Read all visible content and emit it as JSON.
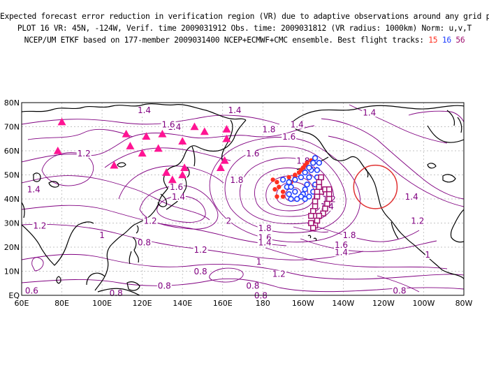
{
  "header": {
    "line1": "Expected forecast error reduction in verification region (VR) due to adaptive observations around any grid point.",
    "line2": "PLOT 16 VR: 45N, -124W, Verif. time 2009031912 Obs. time: 2009031812 (VR radius: 1000km) Norm: u,v,T",
    "line3_prefix": "NCEP/UM ETKF based on 177-member 2009031400 NCEP+ECMWF+CMC ensemble. Best flight tracks:",
    "track_a": "15",
    "track_b": "16",
    "track_c": "56"
  },
  "map": {
    "lat_labels": [
      "80N",
      "70N",
      "60N",
      "50N",
      "40N",
      "30N",
      "20N",
      "10N",
      "EQ"
    ],
    "lon_labels": [
      "60E",
      "80E",
      "100E",
      "120E",
      "140E",
      "160E",
      "180",
      "160W",
      "140W",
      "120W",
      "100W",
      "80W"
    ],
    "contour_labels": [
      {
        "text": "1.4",
        "lon": 121,
        "lat": 76
      },
      {
        "text": "1.4",
        "lon": 166,
        "lat": 76
      },
      {
        "text": "1.4",
        "lon": 136,
        "lat": 69
      },
      {
        "text": "1.4",
        "lon": 66,
        "lat": 43
      },
      {
        "text": "1.2",
        "lon": 91,
        "lat": 58
      },
      {
        "text": "1.6",
        "lon": 133,
        "lat": 70
      },
      {
        "text": "1.6",
        "lon": 175,
        "lat": 58
      },
      {
        "text": "1.8",
        "lon": 183,
        "lat": 68
      },
      {
        "text": "1.6",
        "lon": 193,
        "lat": 65
      },
      {
        "text": "1.4",
        "lon": 197,
        "lat": 70
      },
      {
        "text": "1.4",
        "lon": 233,
        "lat": 75
      },
      {
        "text": "1.4",
        "lon": 254,
        "lat": 40
      },
      {
        "text": "1.2",
        "lon": 257,
        "lat": 30
      },
      {
        "text": "1.6",
        "lon": 137,
        "lat": 44
      },
      {
        "text": "1.4",
        "lon": 138,
        "lat": 40
      },
      {
        "text": "1.8",
        "lon": 167,
        "lat": 47
      },
      {
        "text": "2",
        "lon": 163,
        "lat": 30
      },
      {
        "text": "1.2",
        "lon": 124,
        "lat": 30
      },
      {
        "text": "1.2",
        "lon": 69,
        "lat": 28
      },
      {
        "text": "1",
        "lon": 100,
        "lat": 24
      },
      {
        "text": "0.8",
        "lon": 121,
        "lat": 21
      },
      {
        "text": "1.8",
        "lon": 181,
        "lat": 27
      },
      {
        "text": "1.6",
        "lon": 181,
        "lat": 23
      },
      {
        "text": "1.4",
        "lon": 181,
        "lat": 21
      },
      {
        "text": "1.8",
        "lon": 223,
        "lat": 24
      },
      {
        "text": "1.6",
        "lon": 219,
        "lat": 20
      },
      {
        "text": "1.4",
        "lon": 219,
        "lat": 17
      },
      {
        "text": "1.2",
        "lon": 149,
        "lat": 18
      },
      {
        "text": "1",
        "lon": 178,
        "lat": 13
      },
      {
        "text": "1.2",
        "lon": 188,
        "lat": 8
      },
      {
        "text": "1",
        "lon": 262,
        "lat": 16
      },
      {
        "text": "0.8",
        "lon": 149,
        "lat": 9
      },
      {
        "text": "0.8",
        "lon": 131,
        "lat": 3
      },
      {
        "text": "0.8",
        "lon": 179,
        "lat": -1
      },
      {
        "text": "0.6",
        "lon": 65,
        "lat": 1
      },
      {
        "text": "0.8",
        "lon": 107,
        "lat": 0
      },
      {
        "text": "0.8",
        "lon": 175,
        "lat": 3
      },
      {
        "text": "0.8",
        "lon": 248,
        "lat": 1
      },
      {
        "text": "1",
        "lon": 211,
        "lat": 37
      },
      {
        "text": "1.2",
        "lon": 213,
        "lat": 39
      },
      {
        "text": "1.4",
        "lon": 212,
        "lat": 36
      },
      {
        "text": "1.6",
        "lon": 203,
        "lat": 52
      },
      {
        "text": "1.8",
        "lon": 200,
        "lat": 55
      }
    ],
    "triangles": [
      {
        "lon": 80,
        "lat": 72
      },
      {
        "lon": 78,
        "lat": 60
      },
      {
        "lon": 112,
        "lat": 67
      },
      {
        "lon": 114,
        "lat": 62
      },
      {
        "lon": 120,
        "lat": 59
      },
      {
        "lon": 122,
        "lat": 66
      },
      {
        "lon": 130,
        "lat": 67
      },
      {
        "lon": 128,
        "lat": 61
      },
      {
        "lon": 140,
        "lat": 64
      },
      {
        "lon": 146,
        "lat": 70
      },
      {
        "lon": 151,
        "lat": 68
      },
      {
        "lon": 162,
        "lat": 69
      },
      {
        "lon": 162,
        "lat": 65
      },
      {
        "lon": 161,
        "lat": 56
      },
      {
        "lon": 159,
        "lat": 53
      },
      {
        "lon": 132,
        "lat": 51
      },
      {
        "lon": 135,
        "lat": 48
      },
      {
        "lon": 140,
        "lat": 50
      },
      {
        "lon": 141,
        "lat": 53
      },
      {
        "lon": 106,
        "lat": 54
      }
    ],
    "track_15": [
      {
        "lon": 185,
        "lat": 48
      },
      {
        "lon": 186,
        "lat": 44
      },
      {
        "lon": 187,
        "lat": 41
      },
      {
        "lon": 190,
        "lat": 41
      },
      {
        "lon": 192,
        "lat": 45
      },
      {
        "lon": 194,
        "lat": 47
      },
      {
        "lon": 196,
        "lat": 49
      },
      {
        "lon": 198,
        "lat": 51
      },
      {
        "lon": 200,
        "lat": 53
      },
      {
        "lon": 202,
        "lat": 55
      },
      {
        "lon": 204,
        "lat": 56
      },
      {
        "lon": 201,
        "lat": 54
      },
      {
        "lon": 199,
        "lat": 52
      },
      {
        "lon": 196,
        "lat": 50
      },
      {
        "lon": 193,
        "lat": 49
      },
      {
        "lon": 190,
        "lat": 48
      },
      {
        "lon": 187,
        "lat": 47
      },
      {
        "lon": 188,
        "lat": 45
      },
      {
        "lon": 190,
        "lat": 43
      }
    ],
    "track_16": [
      {
        "lon": 190,
        "lat": 48
      },
      {
        "lon": 192,
        "lat": 45
      },
      {
        "lon": 193,
        "lat": 42
      },
      {
        "lon": 194,
        "lat": 40
      },
      {
        "lon": 197,
        "lat": 40
      },
      {
        "lon": 200,
        "lat": 42
      },
      {
        "lon": 201,
        "lat": 44
      },
      {
        "lon": 202,
        "lat": 46
      },
      {
        "lon": 203,
        "lat": 49
      },
      {
        "lon": 204,
        "lat": 52
      },
      {
        "lon": 205,
        "lat": 55
      },
      {
        "lon": 206,
        "lat": 57
      },
      {
        "lon": 208,
        "lat": 55
      },
      {
        "lon": 207,
        "lat": 52
      },
      {
        "lon": 207,
        "lat": 49
      },
      {
        "lon": 206,
        "lat": 46
      },
      {
        "lon": 205,
        "lat": 43
      },
      {
        "lon": 203,
        "lat": 41
      },
      {
        "lon": 201,
        "lat": 40
      },
      {
        "lon": 199,
        "lat": 41
      },
      {
        "lon": 196,
        "lat": 43
      },
      {
        "lon": 194,
        "lat": 45
      },
      {
        "lon": 193,
        "lat": 47
      },
      {
        "lon": 196,
        "lat": 48
      },
      {
        "lon": 199,
        "lat": 49
      },
      {
        "lon": 201,
        "lat": 51
      },
      {
        "lon": 203,
        "lat": 53
      }
    ],
    "track_56": [
      {
        "lon": 207,
        "lat": 41
      },
      {
        "lon": 209,
        "lat": 43
      },
      {
        "lon": 211,
        "lat": 44
      },
      {
        "lon": 213,
        "lat": 44
      },
      {
        "lon": 213,
        "lat": 42
      },
      {
        "lon": 213,
        "lat": 40
      },
      {
        "lon": 212,
        "lat": 38
      },
      {
        "lon": 211,
        "lat": 36
      },
      {
        "lon": 210,
        "lat": 34
      },
      {
        "lon": 208,
        "lat": 33
      },
      {
        "lon": 207,
        "lat": 31
      },
      {
        "lon": 206,
        "lat": 29
      },
      {
        "lon": 205,
        "lat": 28
      },
      {
        "lon": 204,
        "lat": 30
      },
      {
        "lon": 204,
        "lat": 33
      },
      {
        "lon": 205,
        "lat": 35
      },
      {
        "lon": 206,
        "lat": 37
      },
      {
        "lon": 206,
        "lat": 39
      },
      {
        "lon": 207,
        "lat": 43
      },
      {
        "lon": 208,
        "lat": 45
      },
      {
        "lon": 208,
        "lat": 47
      },
      {
        "lon": 209,
        "lat": 49
      }
    ],
    "vr_center": {
      "lon": 236,
      "lat": 45
    },
    "colors": {
      "contour": "#800080",
      "triangle": "#ff1493",
      "track15": "#ff3020",
      "track16": "#2040ff",
      "track56": "#a01070",
      "circle": "#e03030",
      "coast": "#000000"
    }
  }
}
